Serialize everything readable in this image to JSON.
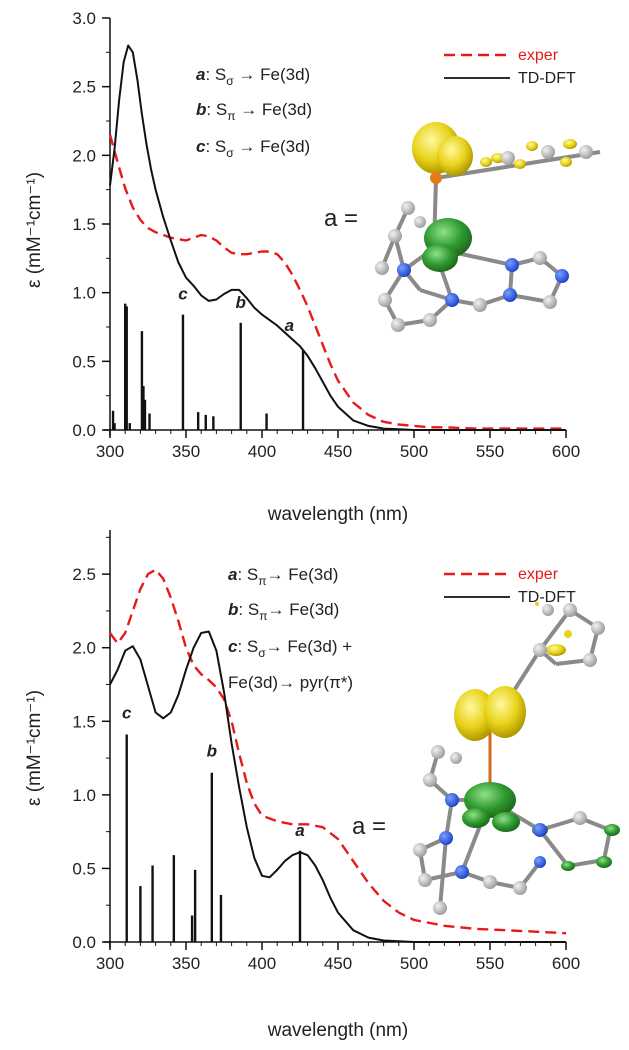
{
  "chart_data": [
    {
      "type": "line",
      "xlabel": "wavelength (nm)",
      "ylabel": "ε (mM⁻¹cm⁻¹)",
      "xlim": [
        300,
        600
      ],
      "ylim": [
        0,
        3.0
      ],
      "xticks": [
        "300",
        "350",
        "400",
        "450",
        "500",
        "550",
        "600"
      ],
      "yticks": [
        "0.0",
        "0.5",
        "1.0",
        "1.5",
        "2.0",
        "2.5",
        "3.0"
      ],
      "legend": {
        "placement": "top-right",
        "items": [
          {
            "label": "exper",
            "color": "#e8191c",
            "dash": true
          },
          {
            "label": "TD-DFT",
            "color": "#111111",
            "dash": false
          }
        ]
      },
      "assignments": [
        {
          "key": "a",
          "from": "S",
          "sub": "σ",
          "to": "Fe(3d)",
          "extra": ""
        },
        {
          "key": "b",
          "from": "S",
          "sub": "π",
          "to": "Fe(3d)",
          "extra": ""
        },
        {
          "key": "c",
          "from": "S",
          "sub": "σ",
          "to": "Fe(3d)",
          "extra": ""
        }
      ],
      "orbital_label": "a =",
      "series": [
        {
          "name": "exper",
          "color": "#e8191c",
          "x": [
            300,
            305,
            310,
            315,
            320,
            325,
            330,
            340,
            350,
            355,
            360,
            365,
            370,
            375,
            380,
            385,
            390,
            395,
            400,
            405,
            410,
            415,
            420,
            425,
            430,
            435,
            440,
            445,
            450,
            460,
            470,
            480,
            490,
            500,
            510,
            520,
            540,
            560,
            580,
            600
          ],
          "y": [
            2.15,
            1.95,
            1.76,
            1.62,
            1.53,
            1.47,
            1.44,
            1.4,
            1.38,
            1.4,
            1.42,
            1.41,
            1.38,
            1.33,
            1.29,
            1.28,
            1.28,
            1.29,
            1.3,
            1.3,
            1.28,
            1.22,
            1.13,
            1.02,
            0.9,
            0.76,
            0.62,
            0.48,
            0.36,
            0.2,
            0.11,
            0.06,
            0.04,
            0.03,
            0.02,
            0.02,
            0.01,
            0.01,
            0.01,
            0.01
          ]
        },
        {
          "name": "TD-DFT",
          "color": "#111111",
          "x": [
            300,
            303,
            306,
            309,
            312,
            315,
            318,
            321,
            324,
            327,
            330,
            335,
            340,
            345,
            350,
            355,
            360,
            365,
            370,
            375,
            380,
            385,
            390,
            395,
            400,
            405,
            410,
            415,
            420,
            425,
            430,
            435,
            440,
            445,
            450,
            460,
            470,
            480,
            490,
            500,
            520,
            540,
            560,
            600
          ],
          "y": [
            1.78,
            2.05,
            2.4,
            2.68,
            2.8,
            2.75,
            2.55,
            2.3,
            2.08,
            1.9,
            1.75,
            1.55,
            1.38,
            1.22,
            1.11,
            1.05,
            0.98,
            0.94,
            0.95,
            0.99,
            1.02,
            1.02,
            0.96,
            0.89,
            0.84,
            0.8,
            0.76,
            0.71,
            0.66,
            0.61,
            0.54,
            0.45,
            0.35,
            0.25,
            0.17,
            0.07,
            0.03,
            0.01,
            0.005,
            0.0,
            0.0,
            0.0,
            0.0,
            0.0
          ]
        }
      ],
      "transitions": {
        "x": [
          302,
          303,
          310,
          311,
          313,
          321,
          322,
          323,
          326,
          348,
          358,
          363,
          368,
          386,
          403,
          427
        ],
        "y": [
          0.14,
          0.05,
          0.92,
          0.9,
          0.05,
          0.72,
          0.32,
          0.22,
          0.12,
          0.84,
          0.13,
          0.11,
          0.1,
          0.78,
          0.12,
          0.58
        ]
      },
      "peak_labels": [
        {
          "text": "c",
          "x": 348,
          "y": 0.95
        },
        {
          "text": "b",
          "x": 386,
          "y": 0.89
        },
        {
          "text": "a",
          "x": 418,
          "y": 0.72
        }
      ]
    },
    {
      "type": "line",
      "xlabel": "wavelength (nm)",
      "ylabel": "ε (mM⁻¹cm⁻¹)",
      "xlim": [
        300,
        600
      ],
      "ylim": [
        0,
        2.8
      ],
      "xticks": [
        "300",
        "350",
        "400",
        "450",
        "500",
        "550",
        "600"
      ],
      "yticks": [
        "0.0",
        "0.5",
        "1.0",
        "1.5",
        "2.0",
        "2.5"
      ],
      "legend": {
        "placement": "top-right",
        "items": [
          {
            "label": "exper",
            "color": "#e8191c",
            "dash": true
          },
          {
            "label": "TD-DFT",
            "color": "#111111",
            "dash": false
          }
        ]
      },
      "assignments": [
        {
          "key": "a",
          "from": "S",
          "sub": "π",
          "to": "Fe(3d)",
          "extra": ""
        },
        {
          "key": "b",
          "from": "S",
          "sub": "π",
          "to": "Fe(3d)",
          "extra": ""
        },
        {
          "key": "c",
          "from": "S",
          "sub": "σ",
          "to": "Fe(3d) +",
          "extra": "Fe(3d)→ pyr(π*)"
        }
      ],
      "orbital_label": "a =",
      "series": [
        {
          "name": "exper",
          "color": "#e8191c",
          "x": [
            300,
            305,
            310,
            315,
            320,
            325,
            330,
            335,
            340,
            345,
            350,
            355,
            360,
            365,
            370,
            375,
            380,
            385,
            390,
            395,
            400,
            410,
            420,
            430,
            440,
            450,
            460,
            470,
            480,
            490,
            500,
            520,
            540,
            560,
            580,
            600
          ],
          "y": [
            2.1,
            2.03,
            2.1,
            2.25,
            2.4,
            2.5,
            2.53,
            2.47,
            2.34,
            2.18,
            2.0,
            1.88,
            1.82,
            1.78,
            1.73,
            1.65,
            1.5,
            1.28,
            1.08,
            0.94,
            0.86,
            0.82,
            0.8,
            0.8,
            0.78,
            0.7,
            0.55,
            0.4,
            0.28,
            0.2,
            0.15,
            0.11,
            0.09,
            0.08,
            0.07,
            0.06
          ]
        },
        {
          "name": "TD-DFT",
          "color": "#111111",
          "x": [
            300,
            305,
            310,
            315,
            320,
            325,
            330,
            335,
            340,
            345,
            350,
            355,
            360,
            365,
            370,
            375,
            380,
            385,
            390,
            395,
            400,
            405,
            410,
            415,
            420,
            425,
            430,
            435,
            440,
            445,
            450,
            460,
            470,
            480,
            500,
            520,
            550,
            600
          ],
          "y": [
            1.75,
            1.85,
            1.98,
            2.01,
            1.92,
            1.74,
            1.56,
            1.52,
            1.56,
            1.68,
            1.85,
            2.0,
            2.1,
            2.11,
            1.98,
            1.7,
            1.35,
            1.05,
            0.78,
            0.57,
            0.45,
            0.44,
            0.49,
            0.55,
            0.59,
            0.61,
            0.59,
            0.52,
            0.42,
            0.3,
            0.2,
            0.08,
            0.03,
            0.01,
            0.0,
            0.0,
            0.0,
            0.0
          ]
        }
      ],
      "transitions": {
        "x": [
          311,
          320,
          328,
          342,
          354,
          356,
          367,
          373,
          425
        ],
        "y": [
          1.41,
          0.38,
          0.52,
          0.59,
          0.18,
          0.49,
          1.15,
          0.32,
          0.62
        ]
      },
      "peak_labels": [
        {
          "text": "c",
          "x": 311,
          "y": 1.52
        },
        {
          "text": "b",
          "x": 367,
          "y": 1.26
        },
        {
          "text": "a",
          "x": 425,
          "y": 0.72
        }
      ]
    }
  ]
}
